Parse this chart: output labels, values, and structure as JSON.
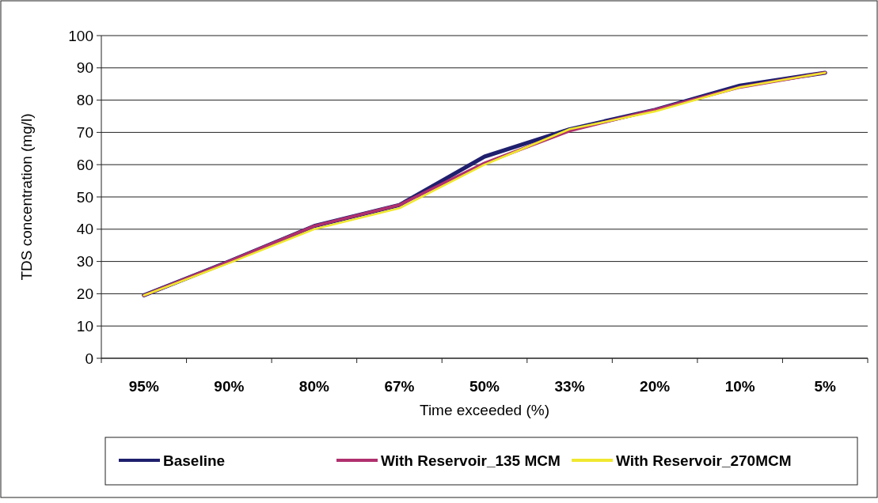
{
  "chart_data": {
    "type": "line",
    "xlabel": "Time exceeded (%)",
    "ylabel": "TDS concentration (mg/l)",
    "categories": [
      "95%",
      "90%",
      "80%",
      "67%",
      "50%",
      "33%",
      "20%",
      "10%",
      "5%"
    ],
    "series": [
      {
        "name": "Baseline",
        "color": "#1f1f6e",
        "values": [
          19.5,
          30,
          41,
          47.5,
          62.5,
          71,
          77,
          84.5,
          88.5
        ]
      },
      {
        "name": "With Reservoir_135 MCM",
        "color": "#b0306e",
        "values": [
          19.5,
          30,
          41,
          47.5,
          60.5,
          70.5,
          77,
          84,
          88.5
        ]
      },
      {
        "name": "With Reservoir_270MCM",
        "color": "#f0e830",
        "values": [
          19.5,
          29.5,
          40,
          46.5,
          60,
          71,
          76.5,
          84,
          88.5
        ]
      }
    ],
    "ylim": [
      0,
      100
    ],
    "yticks": [
      0,
      10,
      20,
      30,
      40,
      50,
      60,
      70,
      80,
      90,
      100
    ],
    "grid": "y",
    "legend": "bottom",
    "marker": "none",
    "line_style": "solid"
  }
}
